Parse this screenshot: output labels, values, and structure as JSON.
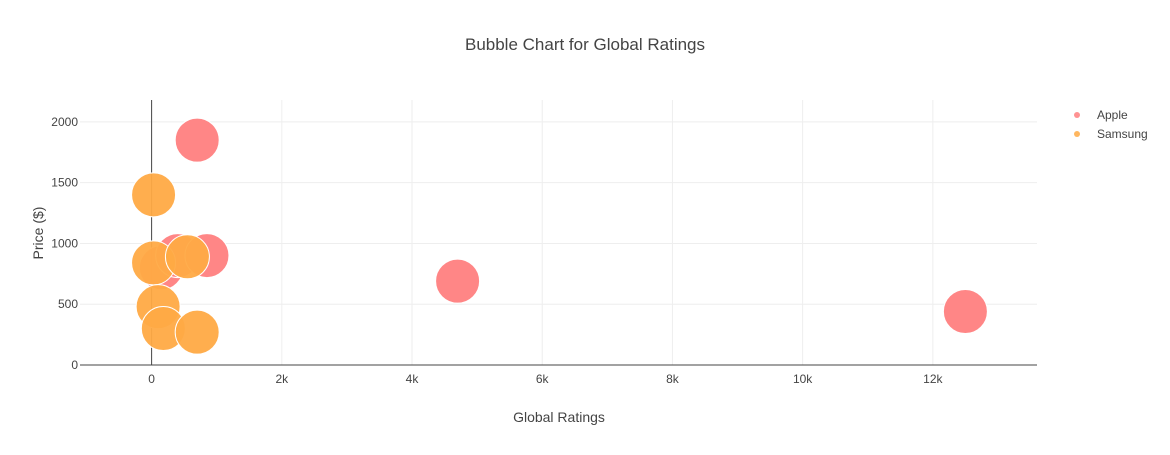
{
  "chart_data": {
    "type": "scatter",
    "title": "Bubble Chart for Global Ratings",
    "xlabel": "Global Ratings",
    "ylabel": "Price ($)",
    "xlim": [
      -1100,
      13600
    ],
    "ylim": [
      0,
      2180
    ],
    "x_ticks": [
      0,
      2000,
      4000,
      6000,
      8000,
      10000,
      12000
    ],
    "x_tick_labels": [
      "0",
      "2k",
      "4k",
      "6k",
      "8k",
      "10k",
      "12k"
    ],
    "y_ticks": [
      0,
      500,
      1000,
      1500,
      2000
    ],
    "y_tick_labels": [
      "0",
      "500",
      "1000",
      "1500",
      "2000"
    ],
    "grid": true,
    "legend_position": "top-right",
    "series": [
      {
        "name": "Apple",
        "color": "#ff7f7f",
        "points": [
          {
            "x": 700,
            "y": 1850
          },
          {
            "x": 150,
            "y": 800
          },
          {
            "x": 400,
            "y": 900
          },
          {
            "x": 850,
            "y": 900
          },
          {
            "x": 4700,
            "y": 690
          },
          {
            "x": 12500,
            "y": 440
          }
        ]
      },
      {
        "name": "Samsung",
        "color": "#ffaa44",
        "points": [
          {
            "x": 30,
            "y": 1400
          },
          {
            "x": 30,
            "y": 840
          },
          {
            "x": 550,
            "y": 890
          },
          {
            "x": 100,
            "y": 480
          },
          {
            "x": 180,
            "y": 300
          },
          {
            "x": 700,
            "y": 270
          }
        ]
      }
    ]
  }
}
